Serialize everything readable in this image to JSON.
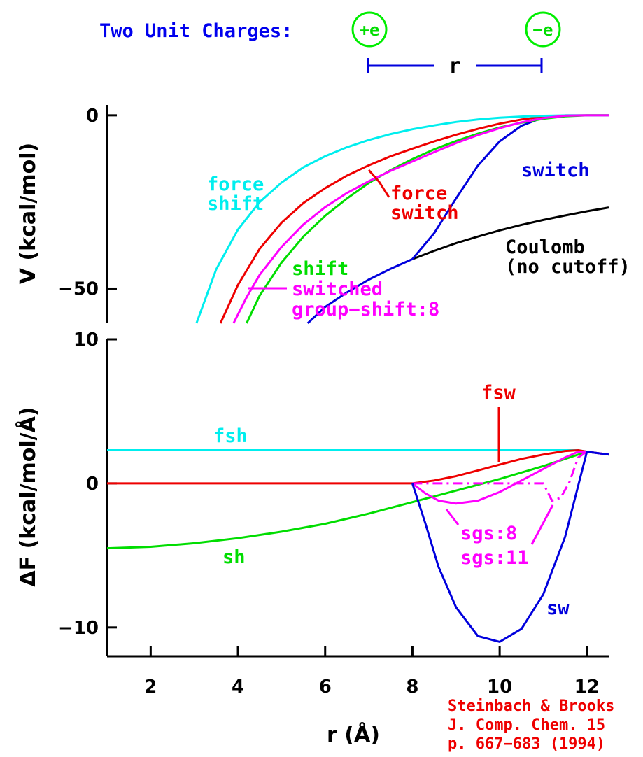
{
  "header": {
    "title": "Two Unit Charges:",
    "charge_plus": "+e",
    "charge_minus": "−e",
    "separation_label": "r"
  },
  "citation": {
    "line1": "Steinbach & Brooks",
    "line2": "J. Comp. Chem. 15",
    "line3": "p. 667−683 (1994)"
  },
  "colors": {
    "coulomb": "#000000",
    "switch": "#0000dd",
    "force_switch": "#ee0000",
    "shift": "#00dd00",
    "force_shift": "#00eeee",
    "switched_group_shift": "#ff00ff",
    "title": "#0000ee",
    "citation": "#ee0000"
  },
  "chart_data": [
    {
      "type": "line",
      "ylabel": "V (kcal/mol)",
      "xlim": [
        1,
        12.5
      ],
      "ylim": [
        -60,
        3
      ],
      "yticks": [
        {
          "value": 0,
          "label": "0"
        },
        {
          "value": -50,
          "label": "−50"
        }
      ],
      "series": [
        {
          "name": "Coulomb (no cutoff)",
          "color": "#000000",
          "x": [
            8.0,
            8.5,
            9.0,
            9.5,
            10.0,
            10.5,
            11.0,
            11.5,
            12.0,
            12.5
          ],
          "y": [
            -41.5,
            -39.1,
            -36.9,
            -35.0,
            -33.2,
            -31.6,
            -30.2,
            -28.9,
            -27.7,
            -26.6
          ]
        },
        {
          "name": "switch",
          "color": "#0000dd",
          "x": [
            5.6,
            6.0,
            6.5,
            7.0,
            7.5,
            8.0,
            8.5,
            9.0,
            9.5,
            10.0,
            10.5,
            11.0,
            11.5,
            12.0,
            12.5
          ],
          "y": [
            -60,
            -55.3,
            -51.1,
            -47.4,
            -44.3,
            -41.5,
            -34.0,
            -24.0,
            -14.5,
            -7.5,
            -3.0,
            -0.6,
            0,
            0,
            0
          ]
        },
        {
          "name": "force switch",
          "color": "#ee0000",
          "x": [
            3.6,
            4.0,
            4.5,
            5.0,
            5.5,
            6.0,
            6.5,
            7.0,
            7.5,
            8.0,
            8.5,
            9.0,
            9.5,
            10.0,
            10.5,
            11.0,
            11.5,
            12.0,
            12.5
          ],
          "y": [
            -60,
            -49.0,
            -38.5,
            -31.0,
            -25.3,
            -21.0,
            -17.4,
            -14.4,
            -11.8,
            -9.6,
            -7.5,
            -5.6,
            -3.9,
            -2.4,
            -1.2,
            -0.4,
            -0.05,
            0,
            0
          ]
        },
        {
          "name": "shift",
          "color": "#00dd00",
          "x": [
            4.2,
            4.5,
            5.0,
            5.5,
            6.0,
            6.5,
            7.0,
            7.5,
            8.0,
            8.5,
            9.0,
            9.5,
            10.0,
            10.5,
            11.0,
            11.5,
            12.0,
            12.5
          ],
          "y": [
            -60,
            -52.0,
            -42.5,
            -35.0,
            -29.0,
            -24.0,
            -19.5,
            -15.8,
            -12.6,
            -9.8,
            -7.4,
            -5.3,
            -3.5,
            -2.1,
            -1.0,
            -0.3,
            0,
            0
          ]
        },
        {
          "name": "force shift",
          "color": "#00eeee",
          "x": [
            3.05,
            3.5,
            4.0,
            4.5,
            5.0,
            5.5,
            6.0,
            6.5,
            7.0,
            7.5,
            8.0,
            8.5,
            9.0,
            9.5,
            10.0,
            10.5,
            11.0,
            11.5,
            12.0,
            12.5
          ],
          "y": [
            -60,
            -44.5,
            -33.0,
            -25.0,
            -19.4,
            -15.0,
            -11.8,
            -9.2,
            -7.1,
            -5.4,
            -4.0,
            -2.9,
            -1.9,
            -1.2,
            -0.7,
            -0.35,
            -0.12,
            -0.02,
            0,
            0
          ]
        },
        {
          "name": "switched group−shift:8",
          "color": "#ff00ff",
          "x": [
            3.9,
            4.2,
            4.5,
            5.0,
            5.5,
            6.0,
            6.5,
            7.0,
            7.5,
            8.0,
            8.5,
            9.0,
            9.5,
            10.0,
            10.5,
            11.0,
            11.5,
            12.0,
            12.5
          ],
          "y": [
            -60,
            -52.5,
            -46.0,
            -38.0,
            -31.5,
            -26.5,
            -22.4,
            -19.0,
            -16.0,
            -13.3,
            -10.6,
            -8.0,
            -5.7,
            -3.7,
            -2.0,
            -0.8,
            -0.1,
            0,
            0
          ]
        }
      ],
      "annotations": {
        "force_shift": [
          "force",
          "shift"
        ],
        "force_switch": [
          "force",
          "switch"
        ],
        "switch": "switch",
        "coulomb": [
          "Coulomb",
          "(no cutoff)"
        ],
        "shift": "shift",
        "sgs": [
          "switched",
          "group−shift:8"
        ]
      }
    },
    {
      "type": "line",
      "ylabel": "ΔF (kcal/mol/Å)",
      "xlabel": "r (Å)",
      "xlim": [
        1,
        12.5
      ],
      "ylim": [
        -12,
        10
      ],
      "xticks": [
        2,
        4,
        6,
        8,
        10,
        12
      ],
      "yticks": [
        {
          "value": 10,
          "label": "10"
        },
        {
          "value": 0,
          "label": "0"
        },
        {
          "value": -10,
          "label": "−10"
        }
      ],
      "series": [
        {
          "name": "fsh",
          "color": "#00eeee",
          "x": [
            1,
            11.8,
            12.0,
            12.5
          ],
          "y": [
            2.3,
            2.3,
            2.2,
            2.0
          ]
        },
        {
          "name": "fsw",
          "color": "#ee0000",
          "x": [
            1,
            8.0,
            8.5,
            9.0,
            9.5,
            10.0,
            10.5,
            11.0,
            11.5,
            11.8,
            12.0,
            12.5
          ],
          "y": [
            0,
            0,
            0.2,
            0.5,
            0.9,
            1.3,
            1.7,
            2.0,
            2.25,
            2.3,
            2.2,
            2.0
          ]
        },
        {
          "name": "sh",
          "color": "#00dd00",
          "x": [
            1,
            2,
            3,
            4,
            5,
            6,
            7,
            8,
            9,
            10,
            11,
            11.5,
            12.0,
            12.5
          ],
          "y": [
            -4.5,
            -4.4,
            -4.15,
            -3.8,
            -3.35,
            -2.8,
            -2.1,
            -1.3,
            -0.5,
            0.3,
            1.2,
            1.7,
            2.2,
            2.0
          ]
        },
        {
          "name": "sgs:8",
          "color": "#ff00ff",
          "x": [
            8.0,
            8.3,
            8.6,
            9.0,
            9.5,
            10.0,
            10.5,
            11.0,
            11.5,
            11.8,
            12.0,
            12.5
          ],
          "y": [
            0,
            -0.7,
            -1.2,
            -1.4,
            -1.2,
            -0.6,
            0.2,
            1.0,
            1.8,
            2.2,
            2.2,
            2.0
          ]
        },
        {
          "name": "sgs:11",
          "color": "#ff00ff",
          "dash": "dashdot",
          "x": [
            8.0,
            8.3,
            9.0,
            10.0,
            11.0,
            11.2,
            11.4,
            11.6,
            11.8,
            12.0,
            12.5
          ],
          "y": [
            0,
            0,
            0,
            0,
            0,
            -1.2,
            -1.0,
            0.1,
            1.8,
            2.2,
            2.0
          ]
        },
        {
          "name": "sw",
          "color": "#0000dd",
          "x": [
            8.0,
            8.3,
            8.6,
            9.0,
            9.5,
            10.0,
            10.5,
            11.0,
            11.5,
            12.0,
            12.5
          ],
          "y": [
            0,
            -2.8,
            -5.8,
            -8.6,
            -10.6,
            -11.0,
            -10.1,
            -7.7,
            -3.7,
            2.2,
            2.0
          ]
        }
      ]
    }
  ]
}
